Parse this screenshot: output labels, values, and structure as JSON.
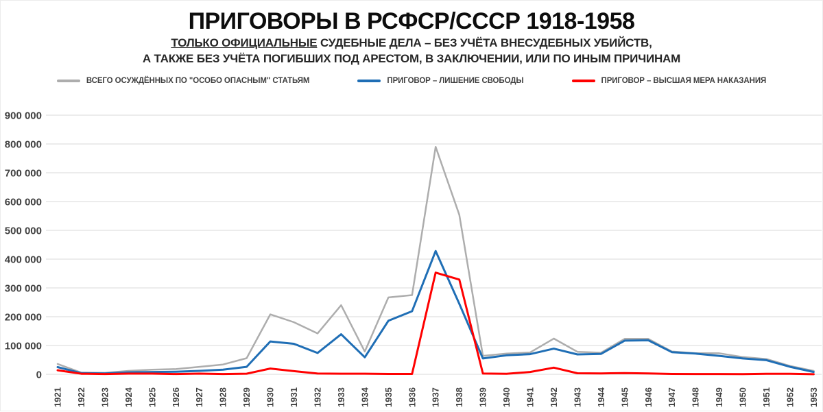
{
  "header": {
    "title": "ПРИГОВОРЫ В РСФСР/СССР 1918-1958",
    "subtitle_underlined": "ТОЛЬКО ОФИЦИАЛЬНЫЕ",
    "subtitle_line1_rest": " СУДЕБНЫЕ ДЕЛА – БЕЗ УЧЁТА ВНЕСУДЕБНЫХ УБИЙСТВ,",
    "subtitle_line2": "А ТАКЖЕ БЕЗ УЧЁТА ПОГИБШИХ ПОД АРЕСТОМ, В ЗАКЛЮЧЕНИИ, ИЛИ ПО ИНЫМ ПРИЧИНАМ"
  },
  "legend": [
    {
      "label": "ВСЕГО ОСУЖДЁННЫХ ПО \"ОСОБО ОПАСНЫМ\" СТАТЬЯМ"
    },
    {
      "label": "ПРИГОВОР – ЛИШЕНИЕ СВОБОДЫ"
    },
    {
      "label": "ПРИГОВОР – ВЫСШАЯ МЕРА НАКАЗАНИЯ"
    }
  ],
  "chart_data": {
    "type": "line",
    "title": "ПРИГОВОРЫ В РСФСР/СССР 1918-1958",
    "subtitle": "ТОЛЬКО ОФИЦИАЛЬНЫЕ СУДЕБНЫЕ ДЕЛА – БЕЗ УЧЁТА ВНЕСУДЕБНЫХ УБИЙСТВ, А ТАКЖЕ БЕЗ УЧЁТА ПОГИБШИХ ПОД АРЕСТОМ, В ЗАКЛЮЧЕНИИ, ИЛИ ПО ИНЫМ ПРИЧИНАМ",
    "legend_position": "top",
    "grid": true,
    "xlabel": "",
    "ylabel": "",
    "ylim": [
      0,
      900000
    ],
    "ytick_values": [
      0,
      100000,
      200000,
      300000,
      400000,
      500000,
      600000,
      700000,
      800000,
      900000
    ],
    "ytick_labels": [
      "0",
      "100 000",
      "200 000",
      "300 000",
      "400 000",
      "500 000",
      "600 000",
      "700 000",
      "800 000",
      "900 000"
    ],
    "x": [
      1921,
      1922,
      1923,
      1924,
      1925,
      1926,
      1927,
      1928,
      1929,
      1930,
      1931,
      1932,
      1933,
      1934,
      1935,
      1936,
      1937,
      1938,
      1939,
      1940,
      1941,
      1942,
      1943,
      1944,
      1945,
      1946,
      1947,
      1948,
      1949,
      1950,
      1951,
      1952,
      1953
    ],
    "series": [
      {
        "name": "ВСЕГО ОСУЖДЁННЫХ ПО \"ОСОБО ОПАСНЫМ\" СТАТЬЯМ",
        "color": "#ADADAD",
        "width": 2.5,
        "values": [
          36000,
          6000,
          5000,
          12000,
          16000,
          18000,
          26000,
          34000,
          56000,
          208000,
          181000,
          142000,
          240000,
          79000,
          267000,
          275000,
          790000,
          554000,
          64000,
          72000,
          76000,
          124000,
          78000,
          75000,
          123000,
          123000,
          79000,
          73000,
          73000,
          60000,
          53000,
          29000,
          12000
        ]
      },
      {
        "name": "ПРИГОВОР – ЛИШЕНИЕ СВОБОДЫ",
        "color": "#1F6EB5",
        "width": 3,
        "values": [
          25000,
          4000,
          3000,
          7000,
          8000,
          9000,
          12000,
          16000,
          26000,
          114000,
          106000,
          74000,
          139000,
          59000,
          186000,
          219000,
          428000,
          245000,
          55000,
          66000,
          70000,
          89000,
          69000,
          71000,
          117000,
          118000,
          77000,
          72000,
          64000,
          55000,
          49000,
          26000,
          8000
        ]
      },
      {
        "name": "ПРИГОВОР – ВЫСШАЯ МЕРА НАКАЗАНИЯ",
        "color": "#FF0000",
        "width": 3,
        "values": [
          14000,
          2000,
          1000,
          2500,
          2400,
          1000,
          2400,
          900,
          2100,
          20000,
          11000,
          2700,
          2200,
          2100,
          1200,
          1100,
          353000,
          329000,
          2600,
          1700,
          8000,
          23000,
          3600,
          3000,
          4300,
          2900,
          1100,
          1000,
          1000,
          500,
          1600,
          1600,
          200
        ]
      }
    ]
  }
}
